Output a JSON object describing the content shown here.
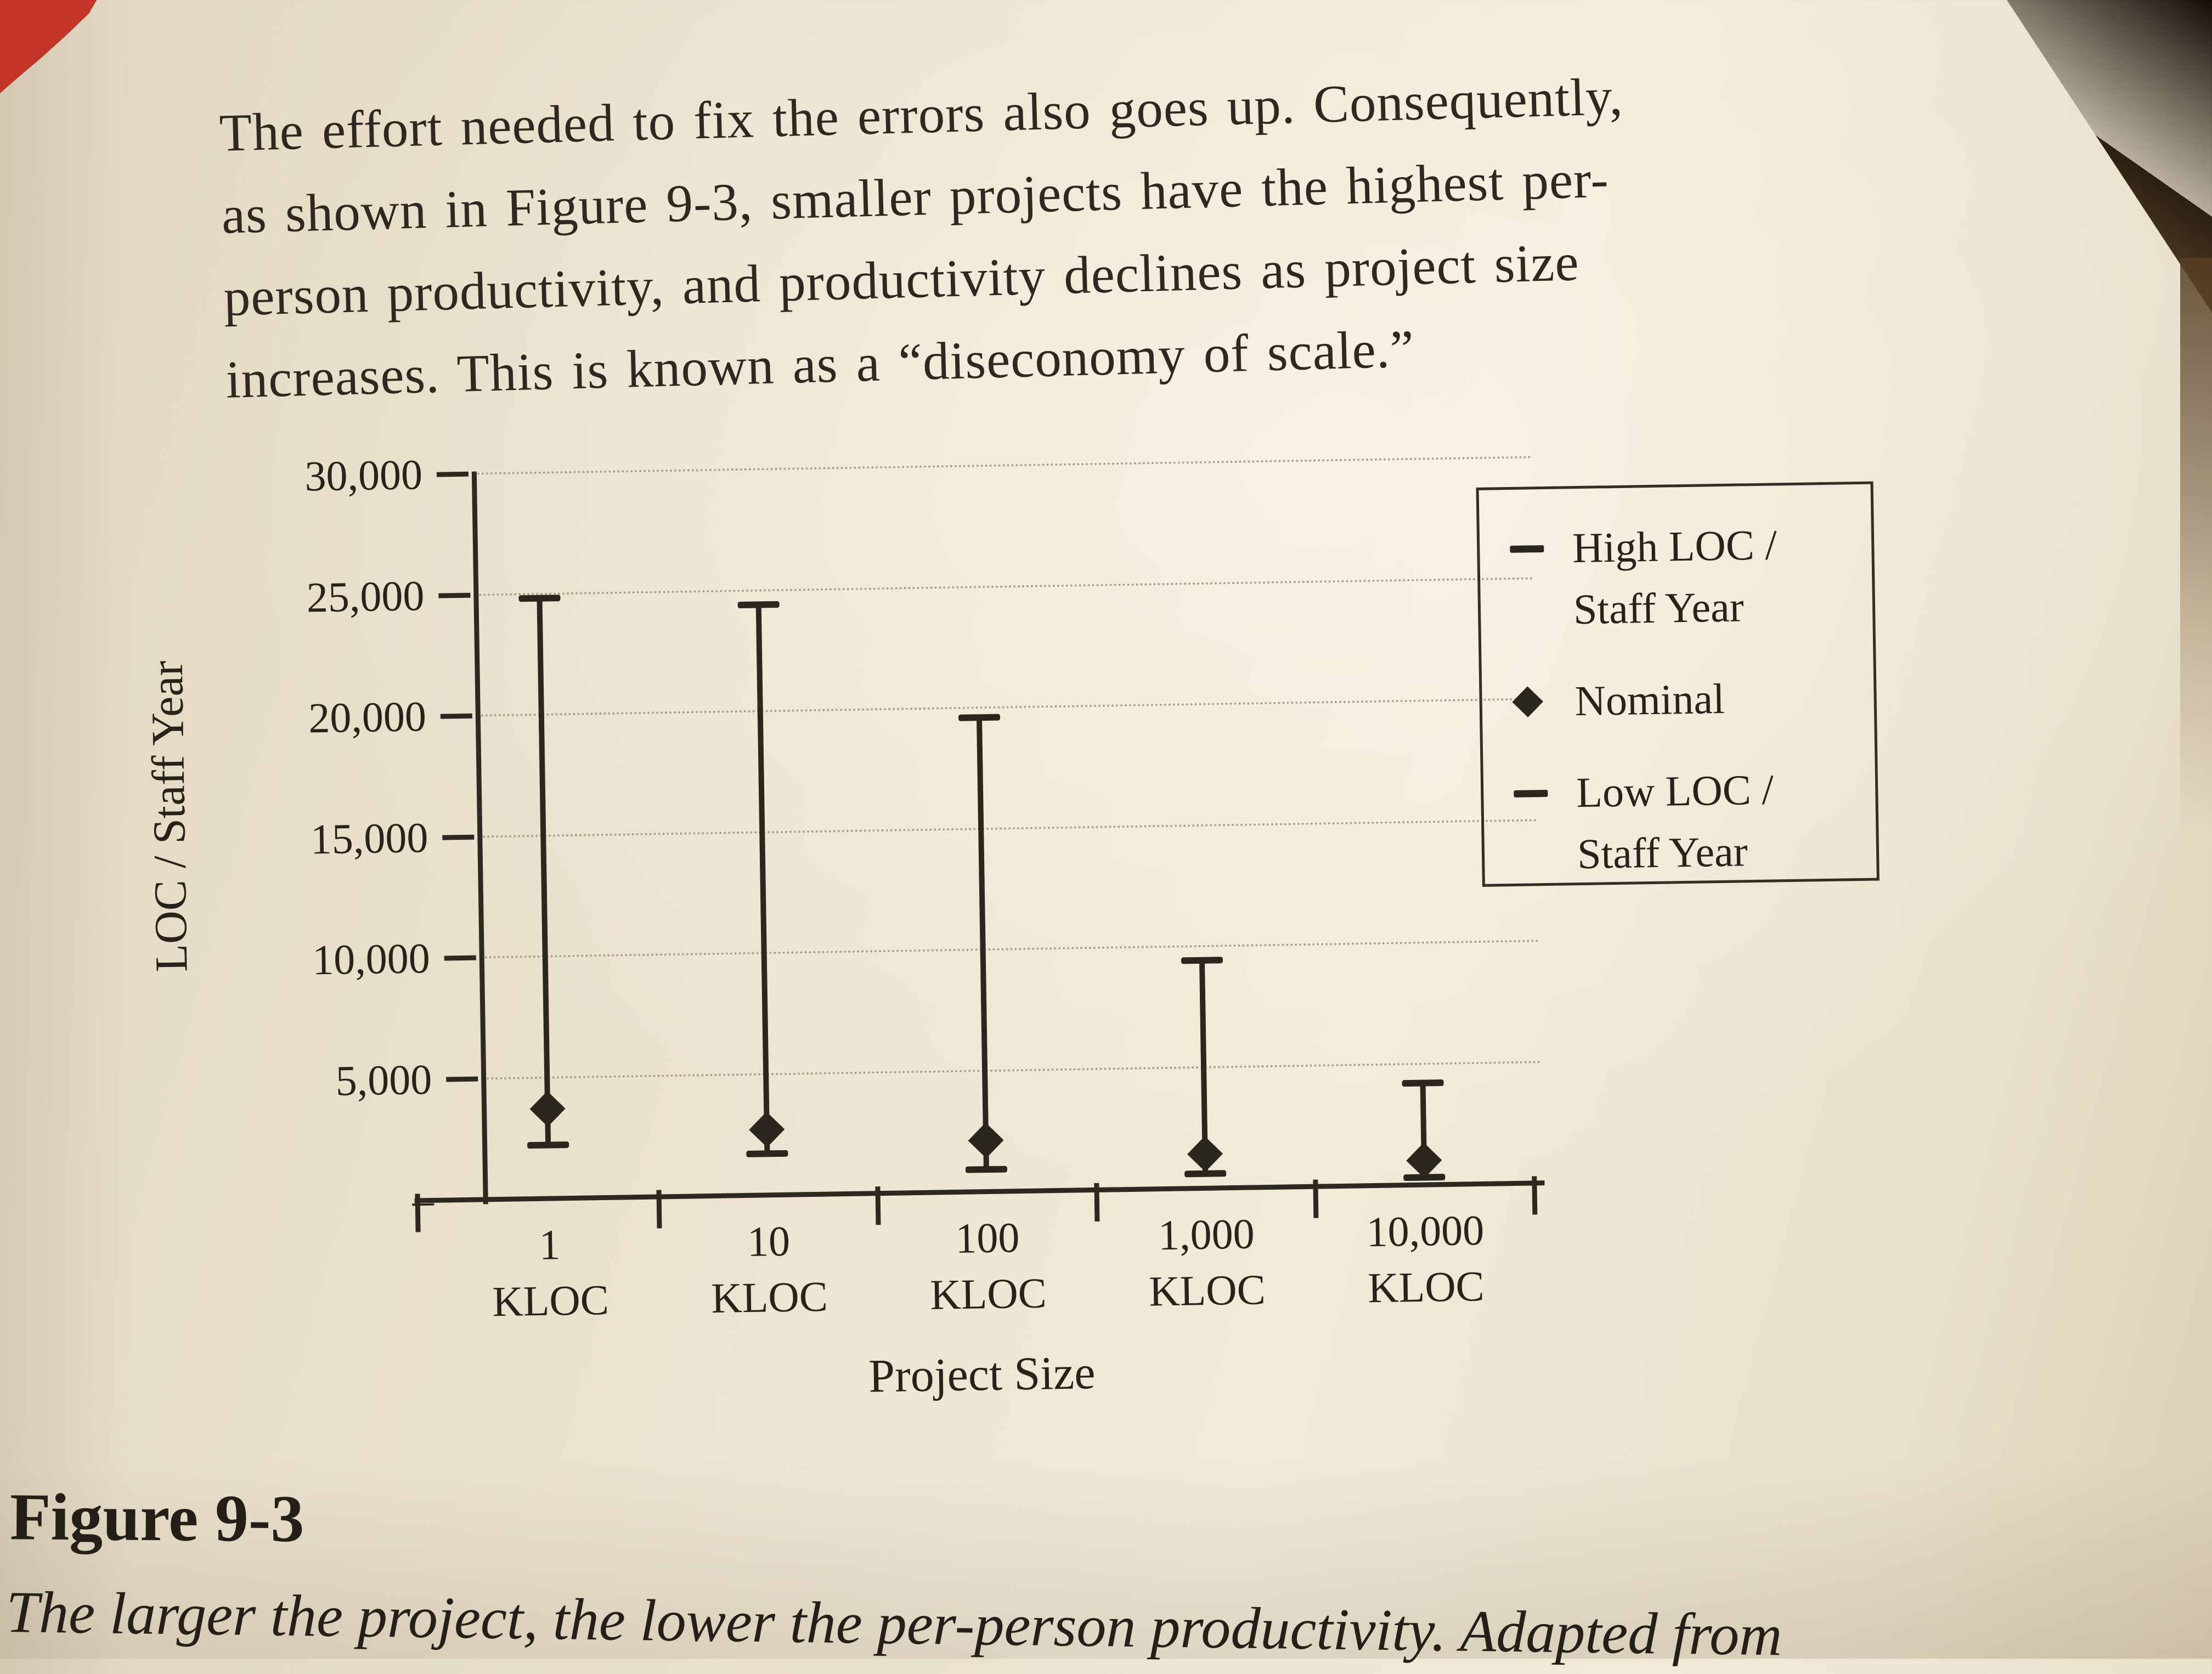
{
  "paragraph": {
    "lines": [
      "The effort needed to fix the errors also goes up. Consequently,",
      "as shown in Figure 9-3, smaller projects have the highest per-",
      "person productivity, and productivity declines as project size",
      "increases. This is known as a “diseconomy of scale.”"
    ]
  },
  "figure": {
    "label": "Figure 9-3",
    "caption": "The larger the project, the lower the per-person productivity. Adapted from"
  },
  "chart_data": {
    "type": "range-bar",
    "title": "",
    "xlabel": "Project Size",
    "ylabel": "LOC / Staff Year",
    "ylim": [
      0,
      30000
    ],
    "grid": "horizontal-dotted",
    "yticks": [
      {
        "value": 30000,
        "label": "30,000"
      },
      {
        "value": 25000,
        "label": "25,000"
      },
      {
        "value": 20000,
        "label": "20,000"
      },
      {
        "value": 15000,
        "label": "15,000"
      },
      {
        "value": 10000,
        "label": "10,000"
      },
      {
        "value": 5000,
        "label": "5,000"
      },
      {
        "value": 0,
        "label": "–"
      }
    ],
    "categories": [
      "1 KLOC",
      "10 KLOC",
      "100 KLOC",
      "1,000 KLOC",
      "10,000 KLOC"
    ],
    "series": [
      {
        "name": "High LOC / Staff Year",
        "marker": "dash",
        "values": [
          24800,
          24400,
          19600,
          9400,
          4200
        ]
      },
      {
        "name": "Nominal",
        "marker": "diamond",
        "values": [
          3700,
          2700,
          2100,
          1400,
          1000
        ]
      },
      {
        "name": "Low LOC / Staff Year",
        "marker": "dash",
        "values": [
          2200,
          1700,
          900,
          600,
          300
        ]
      }
    ],
    "legend": {
      "position": "right",
      "items": [
        {
          "marker": "dash",
          "lines": [
            "High LOC /",
            "Staff Year"
          ]
        },
        {
          "marker": "diamond",
          "lines": [
            "Nominal"
          ]
        },
        {
          "marker": "dash",
          "lines": [
            "Low LOC /",
            "Staff Year"
          ]
        }
      ]
    }
  }
}
